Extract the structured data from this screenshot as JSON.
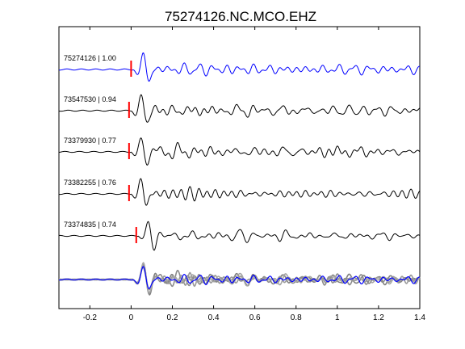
{
  "chart_data": {
    "type": "line",
    "title": "75274126.NC.MCO.EHZ",
    "xlim": [
      -0.35,
      1.4
    ],
    "xticks": [
      -0.2,
      0,
      0.2,
      0.4,
      0.6,
      0.8,
      1,
      1.2,
      1.4
    ],
    "xtick_labels": [
      "-0.2",
      "0",
      "0.2",
      "0.4",
      "0.6",
      "0.8",
      "1",
      "1.2",
      "1.4"
    ],
    "grid": false,
    "xlabel": "",
    "ylabel": "",
    "traces": [
      {
        "label": "75274126 | 1.00",
        "color": "#0000ff",
        "pick_time": 0.0,
        "amp": 1.0
      },
      {
        "label": "73547530 | 0.94",
        "color": "#000000",
        "pick_time": -0.01,
        "amp": 0.95
      },
      {
        "label": "73379930 | 0.77",
        "color": "#000000",
        "pick_time": -0.01,
        "amp": 0.9
      },
      {
        "label": "73382255 | 0.76",
        "color": "#000000",
        "pick_time": -0.01,
        "amp": 0.9
      },
      {
        "label": "73374835 | 0.74",
        "color": "#000000",
        "pick_time": 0.025,
        "amp": 0.85
      }
    ],
    "stack": {
      "colors": [
        "#808080",
        "#8c8c8c",
        "#999999",
        "#a6a6a6",
        "#0000ff"
      ]
    },
    "pick_color": "#ff0000"
  }
}
